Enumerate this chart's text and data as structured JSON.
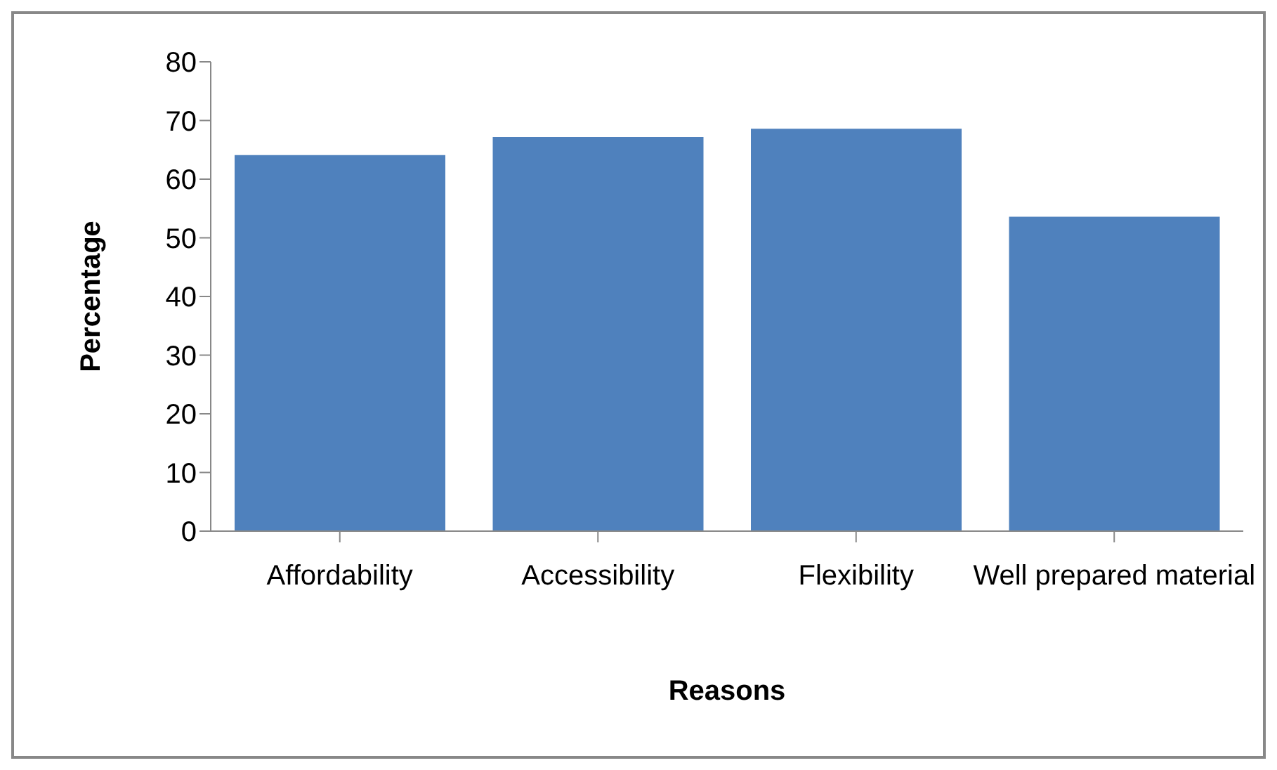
{
  "chart_data": {
    "type": "bar",
    "xlabel": "Reasons",
    "ylabel": "Percentage",
    "categories": [
      "Affordability",
      "Accessibility",
      "Flexibility",
      "Well prepared material"
    ],
    "values": [
      64.1,
      67.2,
      68.6,
      53.6
    ],
    "color": "#4f81bd",
    "ylim": [
      0,
      80
    ],
    "yticks": [
      0,
      10,
      20,
      30,
      40,
      50,
      60,
      70,
      80
    ],
    "grid": false,
    "legend": false
  }
}
